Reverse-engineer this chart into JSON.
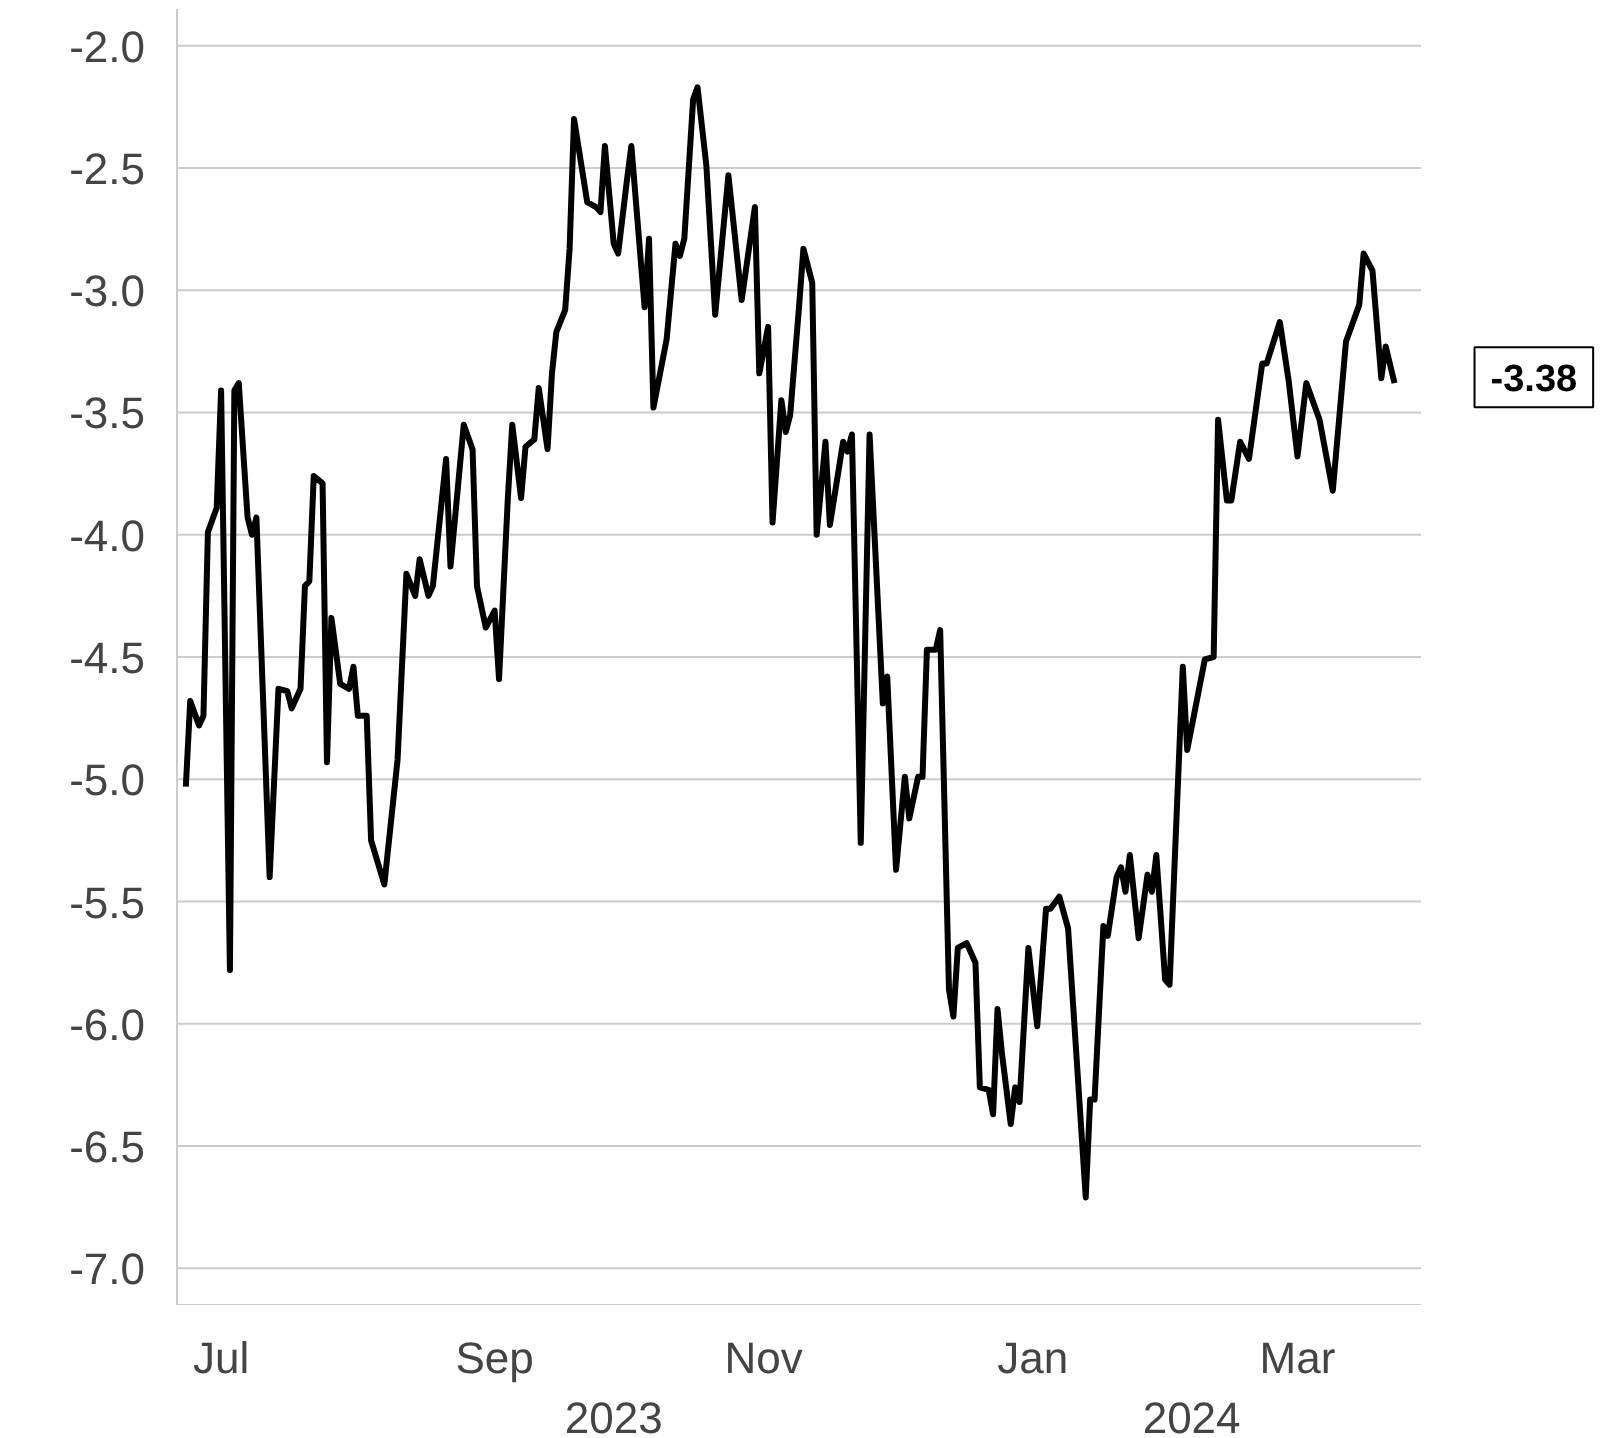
{
  "chart_data": {
    "type": "line",
    "x": [
      "2023-06-23",
      "2023-06-24",
      "2023-06-26",
      "2023-06-27",
      "2023-06-28",
      "2023-06-30",
      "2023-07-01",
      "2023-07-03",
      "2023-07-04",
      "2023-07-05",
      "2023-07-07",
      "2023-07-08",
      "2023-07-09",
      "2023-07-12",
      "2023-07-14",
      "2023-07-16",
      "2023-07-17",
      "2023-07-19",
      "2023-07-20",
      "2023-07-21",
      "2023-07-22",
      "2023-07-24",
      "2023-07-25",
      "2023-07-26",
      "2023-07-28",
      "2023-07-30",
      "2023-07-31",
      "2023-08-01",
      "2023-08-03",
      "2023-08-04",
      "2023-08-07",
      "2023-08-10",
      "2023-08-12",
      "2023-08-14",
      "2023-08-15",
      "2023-08-17",
      "2023-08-18",
      "2023-08-21",
      "2023-08-22",
      "2023-08-25",
      "2023-08-27",
      "2023-08-28",
      "2023-08-30",
      "2023-09-01",
      "2023-09-02",
      "2023-09-04",
      "2023-09-05",
      "2023-09-07",
      "2023-09-08",
      "2023-09-10",
      "2023-09-11",
      "2023-09-13",
      "2023-09-14",
      "2023-09-15",
      "2023-09-17",
      "2023-09-18",
      "2023-09-19",
      "2023-09-22",
      "2023-09-24",
      "2023-09-25",
      "2023-09-26",
      "2023-09-28",
      "2023-09-29",
      "2023-10-01",
      "2023-10-02",
      "2023-10-05",
      "2023-10-06",
      "2023-10-07",
      "2023-10-10",
      "2023-10-12",
      "2023-10-13",
      "2023-10-14",
      "2023-10-16",
      "2023-10-17",
      "2023-10-19",
      "2023-10-21",
      "2023-10-24",
      "2023-10-27",
      "2023-10-30",
      "2023-10-31",
      "2023-11-02",
      "2023-11-03",
      "2023-11-05",
      "2023-11-06",
      "2023-11-07",
      "2023-11-09",
      "2023-11-10",
      "2023-11-12",
      "2023-11-13",
      "2023-11-15",
      "2023-11-16",
      "2023-11-19",
      "2023-11-20",
      "2023-11-21",
      "2023-11-23",
      "2023-11-25",
      "2023-11-28",
      "2023-11-29",
      "2023-12-01",
      "2023-12-03",
      "2023-12-04",
      "2023-12-06",
      "2023-12-07",
      "2023-12-08",
      "2023-12-10",
      "2023-12-11",
      "2023-12-13",
      "2023-12-14",
      "2023-12-15",
      "2023-12-17",
      "2023-12-19",
      "2023-12-20",
      "2023-12-22",
      "2023-12-23",
      "2023-12-24",
      "2023-12-25",
      "2023-12-27",
      "2023-12-28",
      "2023-12-29",
      "2023-12-31",
      "2024-01-02",
      "2024-01-04",
      "2024-01-05",
      "2024-01-07",
      "2024-01-09",
      "2024-01-13",
      "2024-01-14",
      "2024-01-15",
      "2024-01-17",
      "2024-01-18",
      "2024-01-20",
      "2024-01-21",
      "2024-01-22",
      "2024-01-23",
      "2024-01-25",
      "2024-01-27",
      "2024-01-28",
      "2024-01-29",
      "2024-01-31",
      "2024-02-01",
      "2024-02-04",
      "2024-02-05",
      "2024-02-09",
      "2024-02-11",
      "2024-02-12",
      "2024-02-14",
      "2024-02-15",
      "2024-02-17",
      "2024-02-19",
      "2024-02-22",
      "2024-02-23",
      "2024-02-26",
      "2024-02-28",
      "2024-03-01",
      "2024-03-03",
      "2024-03-06",
      "2024-03-09",
      "2024-03-12",
      "2024-03-15",
      "2024-03-16",
      "2024-03-18",
      "2024-03-20",
      "2024-03-21",
      "2024-03-23"
    ],
    "series": [
      {
        "color": "#000000",
        "values": [
          -5.03,
          -4.68,
          -4.78,
          -4.74,
          -3.99,
          -3.89,
          -3.41,
          -5.78,
          -3.41,
          -3.38,
          -3.93,
          -4.0,
          -3.93,
          -5.4,
          -4.63,
          -4.64,
          -4.71,
          -4.63,
          -4.21,
          -4.19,
          -3.76,
          -3.79,
          -4.93,
          -4.34,
          -4.61,
          -4.63,
          -4.54,
          -4.74,
          -4.74,
          -5.25,
          -5.43,
          -4.92,
          -4.16,
          -4.25,
          -4.1,
          -4.25,
          -4.21,
          -3.69,
          -4.13,
          -3.55,
          -3.65,
          -4.21,
          -4.38,
          -4.31,
          -4.59,
          -3.85,
          -3.55,
          -3.85,
          -3.64,
          -3.61,
          -3.4,
          -3.65,
          -3.34,
          -3.17,
          -3.08,
          -2.83,
          -2.3,
          -2.64,
          -2.66,
          -2.68,
          -2.41,
          -2.81,
          -2.85,
          -2.55,
          -2.41,
          -3.07,
          -2.79,
          -3.48,
          -3.2,
          -2.81,
          -2.86,
          -2.79,
          -2.22,
          -2.17,
          -2.49,
          -3.1,
          -2.53,
          -3.04,
          -2.66,
          -3.34,
          -3.15,
          -3.95,
          -3.45,
          -3.58,
          -3.51,
          -3.07,
          -2.83,
          -2.97,
          -4.0,
          -3.62,
          -3.96,
          -3.62,
          -3.66,
          -3.59,
          -5.26,
          -3.59,
          -4.69,
          -4.58,
          -5.37,
          -4.99,
          -5.16,
          -4.99,
          -4.99,
          -4.47,
          -4.47,
          -4.39,
          -5.86,
          -5.97,
          -5.69,
          -5.67,
          -5.75,
          -6.26,
          -6.27,
          -6.37,
          -5.94,
          -6.12,
          -6.41,
          -6.26,
          -6.32,
          -5.69,
          -6.01,
          -5.53,
          -5.53,
          -5.48,
          -5.61,
          -6.71,
          -6.31,
          -6.31,
          -5.6,
          -5.64,
          -5.4,
          -5.36,
          -5.46,
          -5.31,
          -5.65,
          -5.39,
          -5.46,
          -5.31,
          -5.82,
          -5.84,
          -4.54,
          -4.88,
          -4.51,
          -4.5,
          -3.53,
          -3.86,
          -3.86,
          -3.62,
          -3.69,
          -3.3,
          -3.3,
          -3.13,
          -3.37,
          -3.68,
          -3.38,
          -3.53,
          -3.82,
          -3.21,
          -3.06,
          -2.85,
          -2.92,
          -3.36,
          -3.23,
          -3.38
        ]
      }
    ],
    "xlim": [
      "2023-06-21",
      "2024-03-29"
    ],
    "xticks": [
      {
        "value": "2023-07-01",
        "label": "Jul"
      },
      {
        "value": "2023-09-01",
        "label": "Sep"
      },
      {
        "value": "2023-11-01",
        "label": "Nov"
      },
      {
        "value": "2024-01-01",
        "label": "Jan"
      },
      {
        "value": "2024-03-01",
        "label": "Mar"
      }
    ],
    "x2lim": [
      "2023-06-21",
      "2024-03-29"
    ],
    "x2ticks": [
      {
        "value": "2023-09-28",
        "label": "2023"
      },
      {
        "value": "2024-02-06",
        "label": "2024"
      }
    ],
    "ylim": [
      -7.15,
      -1.85
    ],
    "yticks": [
      {
        "value": -2.0,
        "label": "-2.0"
      },
      {
        "value": -2.5,
        "label": "-2.5"
      },
      {
        "value": -3.0,
        "label": "-3.0"
      },
      {
        "value": -3.5,
        "label": "-3.5"
      },
      {
        "value": -4.0,
        "label": "-4.0"
      },
      {
        "value": -4.5,
        "label": "-4.5"
      },
      {
        "value": -5.0,
        "label": "-5.0"
      },
      {
        "value": -5.5,
        "label": "-5.5"
      },
      {
        "value": -6.0,
        "label": "-6.0"
      },
      {
        "value": -6.5,
        "label": "-6.5"
      },
      {
        "value": -7.0,
        "label": "-7.0"
      }
    ],
    "grid": "y",
    "annotations": [
      {
        "text": "-3.38",
        "x": "2024-03-23",
        "y": -3.38
      }
    ]
  }
}
